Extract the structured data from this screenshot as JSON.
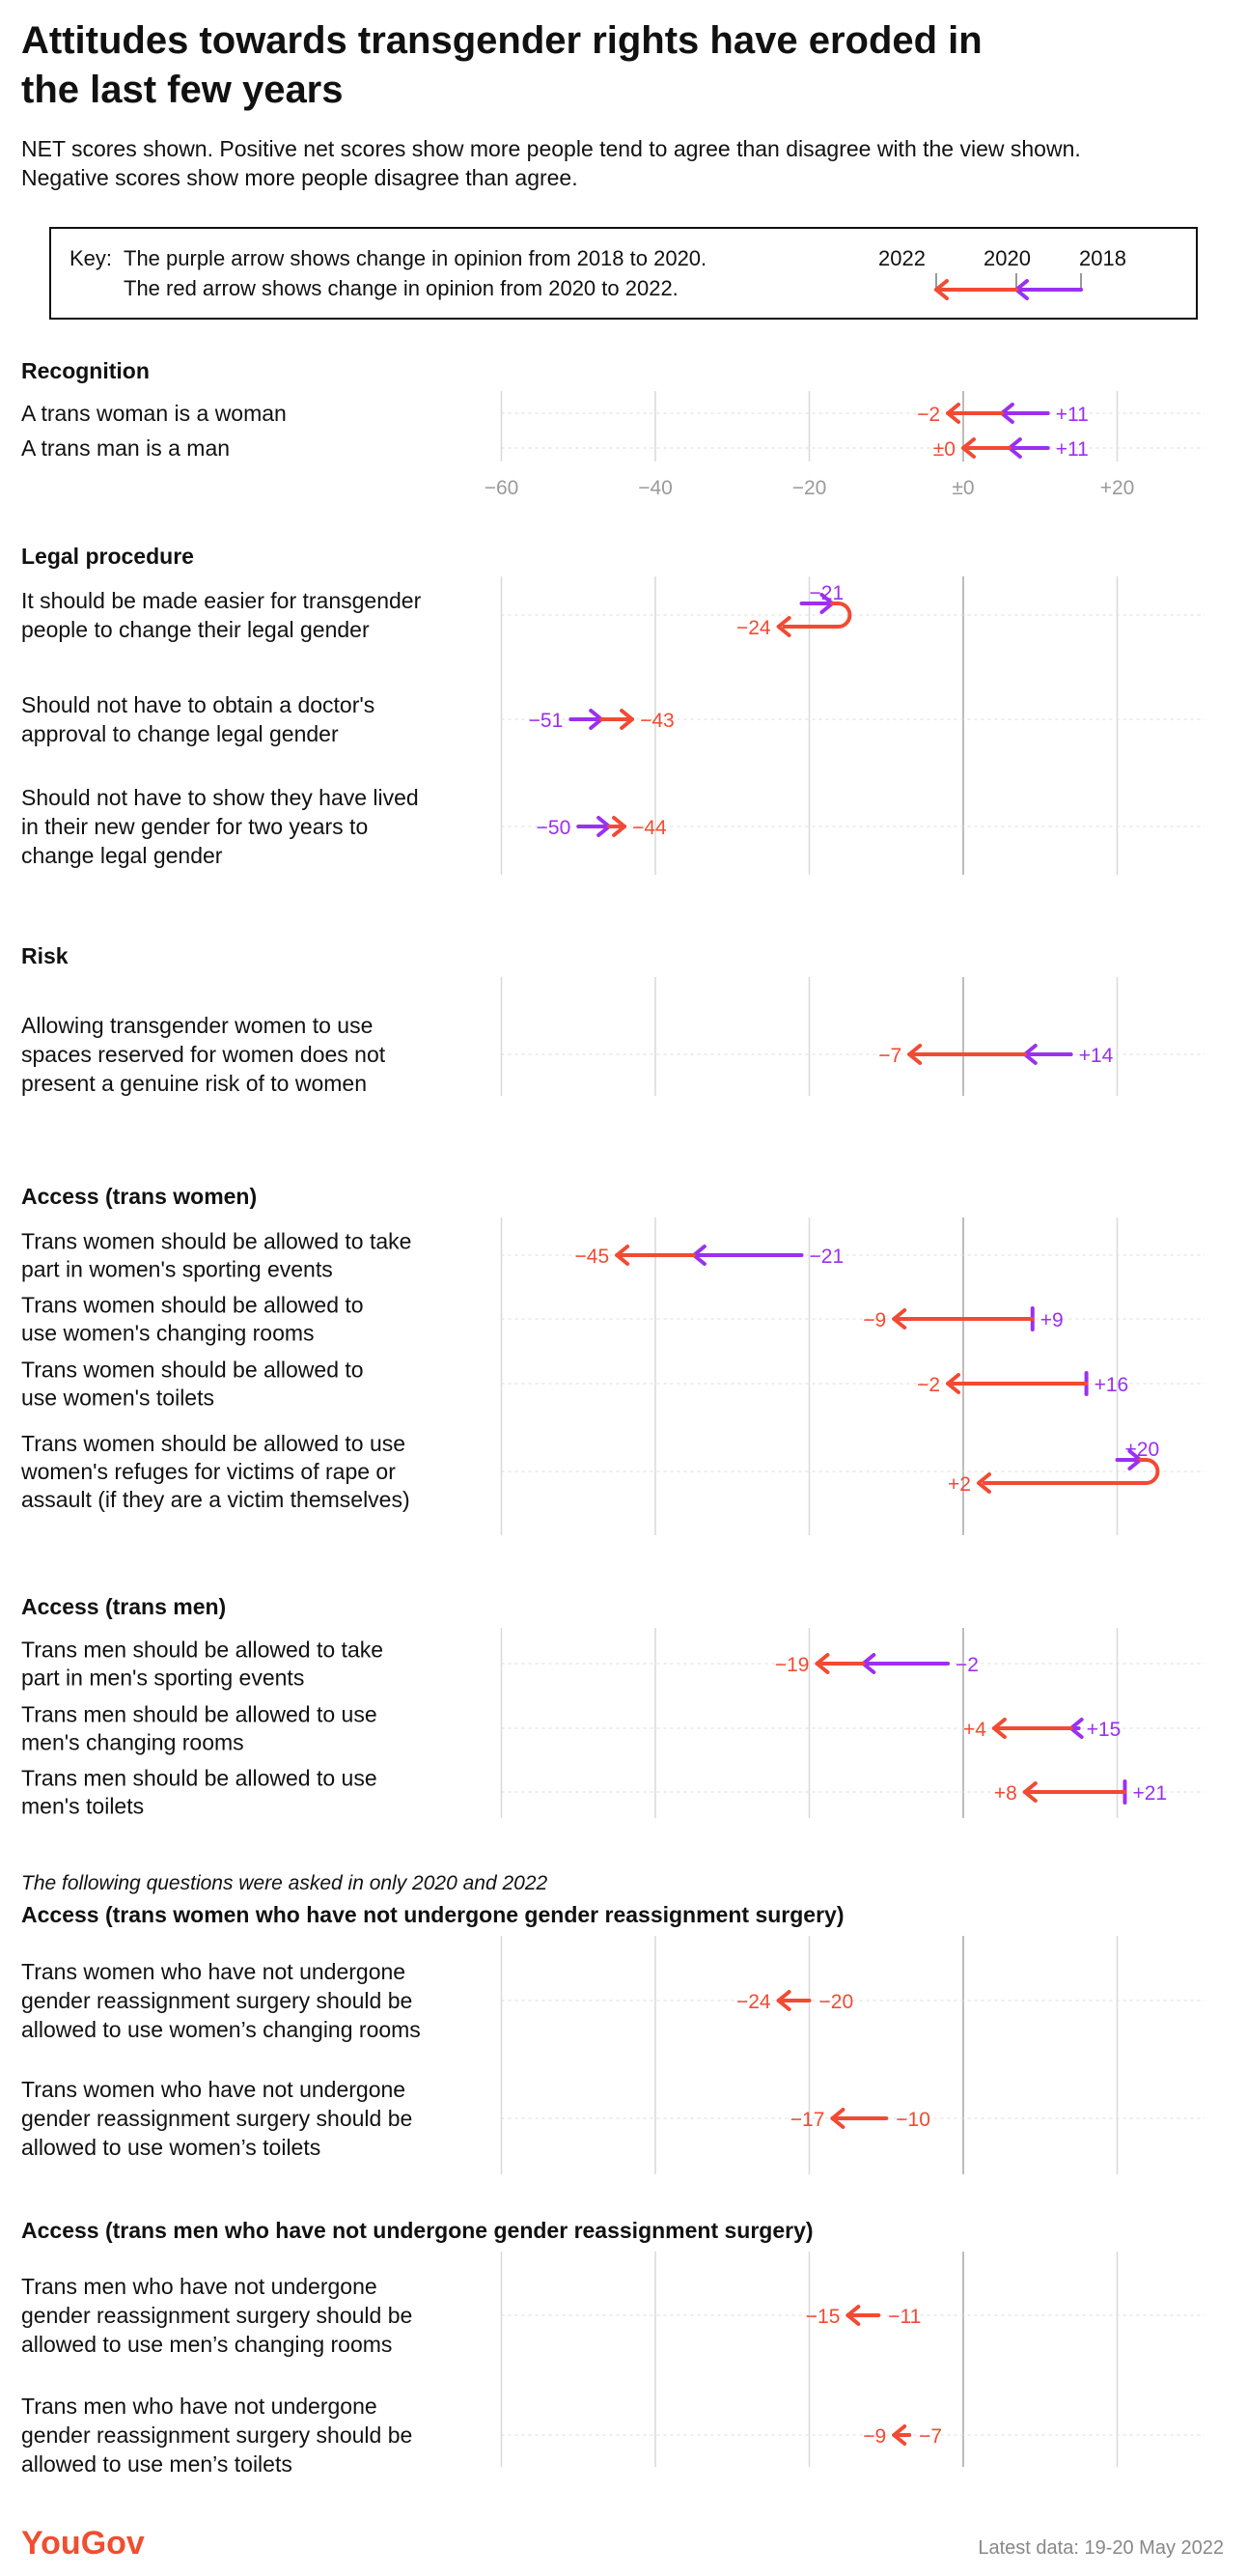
{
  "header": {
    "title_line1": "Attitudes towards transgender rights have eroded in",
    "title_line2": "the last few years",
    "subtitle_line1": "NET scores shown. Positive net scores show more people tend to agree than disagree with the view shown.",
    "subtitle_line2": "Negative scores show more people disagree than agree."
  },
  "key": {
    "label": "Key:",
    "line1": "The purple arrow shows change in opinion from 2018 to 2020.",
    "line2": "The red arrow shows change in opinion from 2020 to 2022.",
    "year_2022": "2022",
    "year_2020": "2020",
    "year_2018": "2018"
  },
  "colors": {
    "purple": "#9b30f0",
    "red": "#f24a33",
    "grid": "#d9d9d9",
    "zero": "#bdbdbd"
  },
  "note": "The following questions were asked in only 2020 and 2022",
  "footer": {
    "logo": "YouGov",
    "latest": "Latest data: 19-20 May 2022"
  },
  "chart_data": {
    "type": "arrow-dot",
    "xlim": [
      -60,
      20
    ],
    "ticks": [
      -60,
      -40,
      -20,
      0,
      20
    ],
    "tick_labels": [
      "−60",
      "−40",
      "−20",
      "±0",
      "+20"
    ],
    "series": [
      "2018",
      "2020",
      "2022"
    ],
    "sections": [
      {
        "title": "Recognition",
        "items": [
          {
            "label": [
              "A trans woman is a woman"
            ],
            "v2020": 5,
            "v2022": -2,
            "v2018": 11,
            "labels": {
              "v2022": "−2",
              "v2018": "+11"
            }
          },
          {
            "label": [
              "A trans man is a man"
            ],
            "v2020": 6,
            "v2022": 0,
            "v2018": 11,
            "labels": {
              "v2022": "±0",
              "v2018": "+11"
            }
          }
        ]
      },
      {
        "title": "Legal procedure",
        "items": [
          {
            "label": [
              "It should be made easier for transgender",
              "people to change their legal gender"
            ],
            "v2018": -21,
            "v2020": -17,
            "v2022": -24,
            "labels": {
              "v2018": "−21",
              "v2022": "−24"
            }
          },
          {
            "label": [
              "Should not have to obtain a doctor's",
              "approval to change legal gender"
            ],
            "v2018": -51,
            "v2020": -47,
            "v2022": -43,
            "labels": {
              "v2018": "−51",
              "v2022": "−43"
            }
          },
          {
            "label": [
              "Should not have to show they have lived",
              "in their new gender for two years to",
              "change legal gender"
            ],
            "v2018": -50,
            "v2020": -46,
            "v2022": -44,
            "labels": {
              "v2018": "−50",
              "v2022": "−44"
            }
          }
        ]
      },
      {
        "title": "Risk",
        "items": [
          {
            "label": [
              "Allowing transgender women to use",
              "spaces reserved for women does not",
              "present a genuine risk of to women"
            ],
            "v2018": 14,
            "v2020": 8,
            "v2022": -7,
            "labels": {
              "v2018": "+14",
              "v2022": "−7"
            }
          }
        ]
      },
      {
        "title": "Access (trans women)",
        "items": [
          {
            "label": [
              "Trans women should be allowed to take",
              "part in women's sporting events"
            ],
            "v2018": -21,
            "v2020": -35,
            "v2022": -45,
            "labels": {
              "v2018": "−21",
              "v2022": "−45"
            }
          },
          {
            "label": [
              "Trans women should be allowed to",
              "use women's changing rooms"
            ],
            "v2018": 9,
            "v2020": 9,
            "v2022": -9,
            "labels": {
              "v2018": "+9",
              "v2022": "−9"
            }
          },
          {
            "label": [
              "Trans women should be allowed to",
              "use women's toilets"
            ],
            "v2018": 16,
            "v2020": 16,
            "v2022": -2,
            "labels": {
              "v2018": "+16",
              "v2022": "−2"
            }
          },
          {
            "label": [
              "Trans women should be allowed to use",
              "women's refuges for victims of rape or",
              "assault (if they are a victim themselves)"
            ],
            "v2018": 20,
            "v2020": 23,
            "v2022": 2,
            "labels": {
              "v2018": "+20",
              "v2022": "+2"
            }
          }
        ]
      },
      {
        "title": "Access (trans men)",
        "items": [
          {
            "label": [
              "Trans men should be allowed to take",
              "part in men's sporting events"
            ],
            "v2018": -2,
            "v2020": -13,
            "v2022": -19,
            "labels": {
              "v2018": "−2",
              "v2022": "−19"
            }
          },
          {
            "label": [
              "Trans men should be allowed to use",
              "men's changing rooms"
            ],
            "v2018": 15,
            "v2020": 14,
            "v2022": 4,
            "labels": {
              "v2018": "+15",
              "v2022": "+4"
            }
          },
          {
            "label": [
              "Trans men should be allowed to use",
              "men's toilets"
            ],
            "v2018": 21,
            "v2020": 21,
            "v2022": 8,
            "labels": {
              "v2018": "+21",
              "v2022": "+8"
            }
          }
        ]
      },
      {
        "title": "Access (trans women who have not undergone gender reassignment surgery)",
        "items": [
          {
            "label": [
              "Trans women who have not undergone",
              "gender reassignment surgery should be",
              "allowed to use women’s changing rooms"
            ],
            "v2020": -20,
            "v2022": -24,
            "labels": {
              "v2020": "−20",
              "v2022": "−24"
            }
          },
          {
            "label": [
              "Trans women who have not undergone",
              "gender reassignment surgery should be",
              "allowed to use women’s toilets"
            ],
            "v2020": -10,
            "v2022": -17,
            "labels": {
              "v2020": "−10",
              "v2022": "−17"
            }
          }
        ]
      },
      {
        "title": "Access (trans men who have not undergone gender reassignment surgery)",
        "items": [
          {
            "label": [
              "Trans men who have not undergone",
              "gender reassignment surgery should be",
              "allowed to use men’s changing rooms"
            ],
            "v2020": -11,
            "v2022": -15,
            "labels": {
              "v2020": "−11",
              "v2022": "−15"
            }
          },
          {
            "label": [
              "Trans men who have not undergone",
              "gender reassignment surgery should be",
              "allowed to use men’s toilets"
            ],
            "v2020": -7,
            "v2022": -9,
            "labels": {
              "v2020": "−7",
              "v2022": "−9"
            }
          }
        ]
      }
    ]
  }
}
